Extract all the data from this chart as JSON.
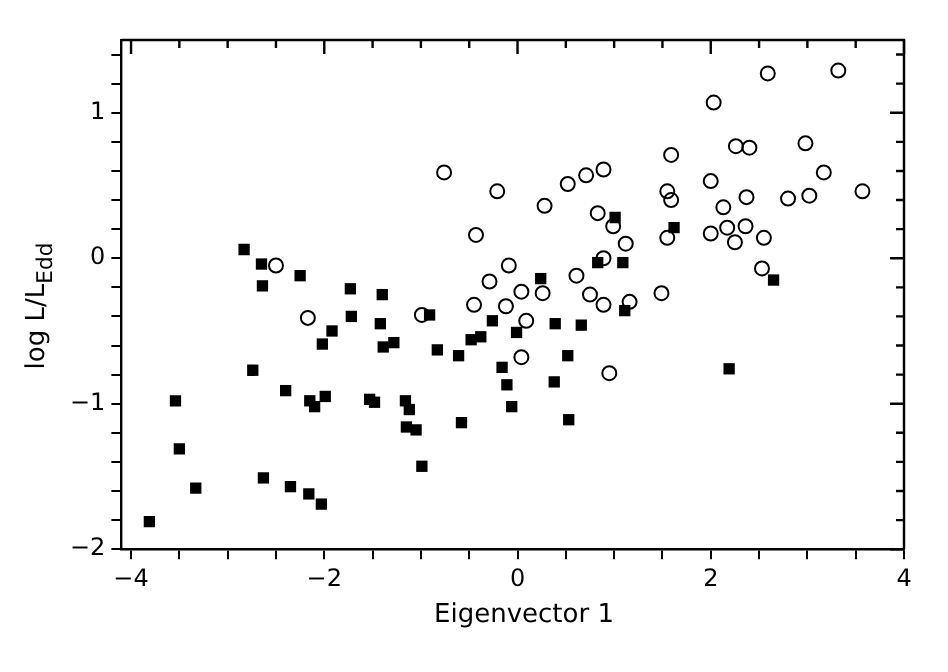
{
  "chart_data": {
    "type": "scatter",
    "xlabel": "Eigenvector 1",
    "ylabel": "log L/L$_{Edd}$",
    "xlim": [
      -4.1,
      4
    ],
    "ylim": [
      -2,
      1.5
    ],
    "xticks": [
      -4,
      {
        "value": -3.5,
        "label": null
      },
      {
        "value": -3,
        "label": null
      },
      {
        "value": -2.5,
        "label": null
      },
      -2,
      {
        "value": -1.5,
        "label": null
      },
      {
        "value": -1,
        "label": null
      },
      {
        "value": -0.5,
        "label": null
      },
      0,
      {
        "value": 0.5,
        "label": null
      },
      {
        "value": 1,
        "label": null
      },
      {
        "value": 1.5,
        "label": null
      },
      2,
      {
        "value": 2.5,
        "label": null
      },
      {
        "value": 3,
        "label": null
      },
      {
        "value": 3.5,
        "label": null
      },
      4
    ],
    "yticks": [
      -2,
      {
        "value": -1.8,
        "label": null
      },
      {
        "value": -1.6,
        "label": null
      },
      {
        "value": -1.4,
        "label": null
      },
      {
        "value": -1.2,
        "label": null
      },
      -1,
      {
        "value": -0.8,
        "label": null
      },
      {
        "value": -0.6,
        "label": null
      },
      {
        "value": -0.4,
        "label": null
      },
      {
        "value": -0.2,
        "label": null
      },
      0,
      {
        "value": 0.2,
        "label": null
      },
      {
        "value": 0.4,
        "label": null
      },
      {
        "value": 0.6,
        "label": null
      },
      {
        "value": 0.8,
        "label": null
      },
      1,
      {
        "value": 1.2,
        "label": null
      },
      {
        "value": 1.4,
        "label": null
      }
    ],
    "grid": false,
    "legend": false,
    "series": [
      {
        "color": "#000000",
        "marker": "square",
        "x": [
          -2.83,
          -2.65,
          -2.64,
          -2.25,
          -1.73,
          -1.4,
          -1.72,
          -1.42,
          -1.92,
          -2.02,
          -1.39,
          -1.28,
          -0.91,
          -0.83,
          -0.61,
          -0.48,
          -0.38,
          -0.26,
          -0.01,
          0.24,
          0.39,
          0.66,
          0.52,
          -0.16,
          -0.11,
          -0.06,
          0.38,
          0.53,
          -0.58,
          -0.99,
          -1.16,
          -1.12,
          -1.15,
          -1.05,
          -1.53,
          -1.48,
          -1.99,
          -2.15,
          -2.1,
          -2.4,
          -2.74,
          -3.54,
          -3.5,
          -3.33,
          -3.81,
          -2.63,
          -2.35,
          -2.16,
          -2.03,
          0.83,
          1.01,
          1.09,
          1.11,
          1.62,
          2.65,
          2.19
        ],
        "values": [
          0.06,
          -0.04,
          -0.19,
          -0.12,
          -0.21,
          -0.25,
          -0.4,
          -0.45,
          -0.5,
          -0.59,
          -0.61,
          -0.58,
          -0.39,
          -0.63,
          -0.67,
          -0.56,
          -0.54,
          -0.43,
          -0.51,
          -0.14,
          -0.45,
          -0.46,
          -0.67,
          -0.75,
          -0.87,
          -1.02,
          -0.85,
          -1.11,
          -1.13,
          -1.43,
          -0.98,
          -1.04,
          -1.16,
          -1.18,
          -0.97,
          -0.99,
          -0.95,
          -0.98,
          -1.02,
          -0.91,
          -0.77,
          -0.98,
          -1.31,
          -1.58,
          -1.81,
          -1.51,
          -1.57,
          -1.62,
          -1.69,
          -0.03,
          0.28,
          -0.03,
          -0.36,
          0.21,
          -0.15,
          -0.76
        ]
      },
      {
        "color": "#000000",
        "marker": "circle",
        "x": [
          -2.5,
          -2.17,
          -0.99,
          -0.76,
          -0.43,
          -0.21,
          -0.29,
          -0.09,
          -0.45,
          -0.12,
          0.04,
          0.26,
          0.09,
          0.04,
          0.28,
          0.52,
          0.71,
          0.89,
          0.83,
          0.99,
          0.89,
          0.61,
          0.75,
          0.89,
          1.16,
          1.12,
          0.95,
          1.49,
          1.55,
          1.55,
          1.59,
          1.59,
          2.0,
          2.03,
          2.0,
          2.13,
          2.17,
          2.26,
          2.4,
          2.25,
          2.37,
          2.36,
          2.55,
          2.53,
          2.59,
          2.8,
          2.98,
          3.02,
          3.17,
          3.32,
          3.57
        ],
        "values": [
          -0.05,
          -0.41,
          -0.39,
          0.59,
          0.16,
          0.46,
          -0.16,
          -0.05,
          -0.32,
          -0.33,
          -0.23,
          -0.24,
          -0.43,
          -0.68,
          0.36,
          0.51,
          0.57,
          0.61,
          0.31,
          0.22,
          0.0,
          -0.12,
          -0.25,
          -0.32,
          -0.3,
          0.1,
          -0.79,
          -0.24,
          0.14,
          0.46,
          0.4,
          0.71,
          0.53,
          1.07,
          0.17,
          0.35,
          0.21,
          0.77,
          0.76,
          0.11,
          0.42,
          0.22,
          0.14,
          -0.07,
          1.27,
          0.41,
          0.79,
          0.43,
          0.59,
          1.29,
          0.46
        ]
      }
    ]
  }
}
